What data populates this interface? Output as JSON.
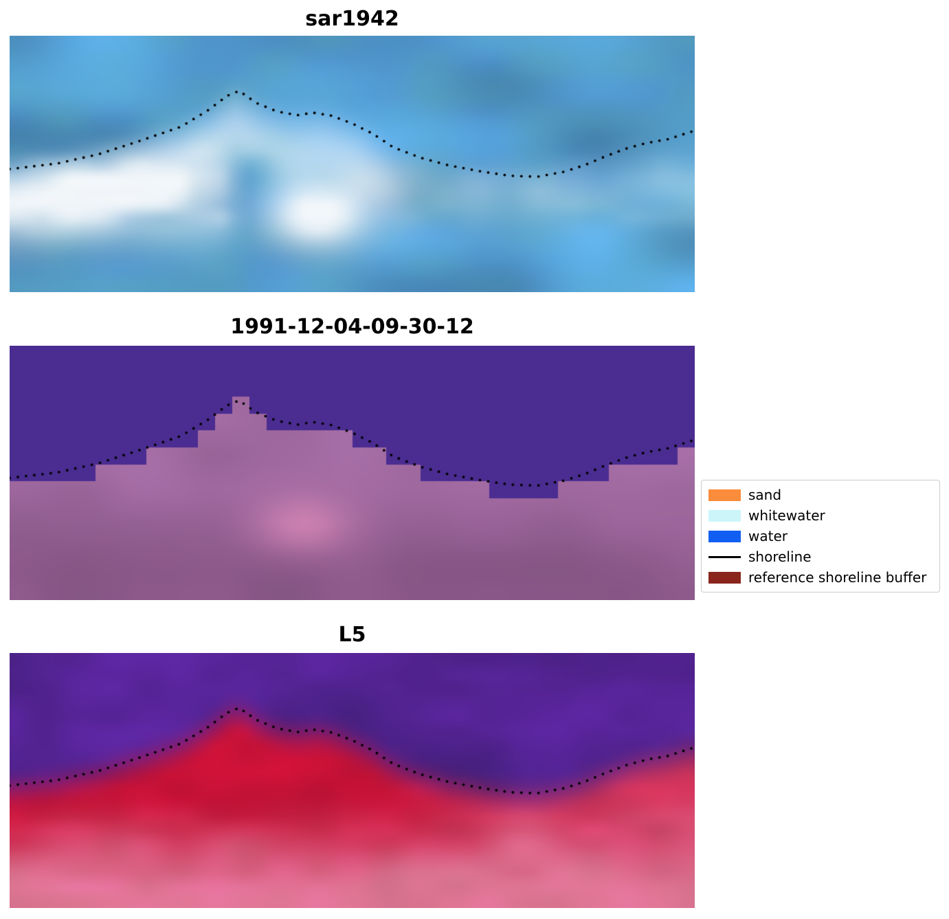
{
  "figure": {
    "panels": [
      {
        "title": "sar1942"
      },
      {
        "title": "1991-12-04-09-30-12"
      },
      {
        "title": "L5"
      }
    ],
    "legend": {
      "items": [
        {
          "label": "sand",
          "color": "#fb8c3c",
          "type": "patch"
        },
        {
          "label": "whitewater",
          "color": "#ccf5fa",
          "type": "patch"
        },
        {
          "label": "water",
          "color": "#115ff2",
          "type": "patch"
        },
        {
          "label": "shoreline",
          "color": "#000000",
          "type": "line"
        },
        {
          "label": "reference shoreline buffer",
          "color": "#8a251d",
          "type": "patch"
        }
      ]
    }
  },
  "chart_data": {
    "type": "heatmap",
    "title": "",
    "description": "Three co-registered coastal image panels (SAR backscatter, classified scene, Landsat 5 false-color) with the same dotted mapped shoreline overlaid on each.",
    "panels": [
      {
        "title": "sar1942",
        "kind": "sar-backscatter-imagery",
        "palette": {
          "sea_blue": "#4e93c8",
          "teal": "#5aaab2",
          "whitewater": "#f8fafc"
        }
      },
      {
        "title": "1991-12-04-09-30-12",
        "kind": "classified-scene",
        "palette": {
          "water": "#4b2c91",
          "buffer": "#a06aa0",
          "buffer_dark": "#8a5888",
          "pink_patch": "#d284b4"
        }
      },
      {
        "title": "L5",
        "kind": "false-color-imagery",
        "palette": {
          "violet": "#5c26a0",
          "violet_dark": "#46207e",
          "red": "#c81237",
          "rose": "#e27896",
          "magenta": "#c355a0"
        }
      }
    ],
    "shoreline": {
      "coords": "normalized; x rightward 0-1, y downward 0-1; identical curve on all three panels",
      "style": {
        "color": "#000000",
        "marker": "dot",
        "dot_radius_px": 1.9,
        "dot_spacing_px": 12
      },
      "x": [
        0.0,
        0.07,
        0.13,
        0.19,
        0.25,
        0.29,
        0.317,
        0.335,
        0.36,
        0.39,
        0.42,
        0.443,
        0.47,
        0.5,
        0.53,
        0.56,
        0.6,
        0.64,
        0.69,
        0.73,
        0.77,
        0.81,
        0.84,
        0.87,
        0.9,
        0.93,
        0.96,
        1.0
      ],
      "y": [
        0.52,
        0.498,
        0.462,
        0.41,
        0.355,
        0.29,
        0.235,
        0.215,
        0.262,
        0.295,
        0.31,
        0.3,
        0.312,
        0.342,
        0.382,
        0.435,
        0.476,
        0.505,
        0.53,
        0.546,
        0.55,
        0.53,
        0.504,
        0.47,
        0.44,
        0.418,
        0.404,
        0.37
      ]
    },
    "legend_entries": [
      "sand",
      "whitewater",
      "water",
      "shoreline",
      "reference shoreline buffer"
    ]
  }
}
